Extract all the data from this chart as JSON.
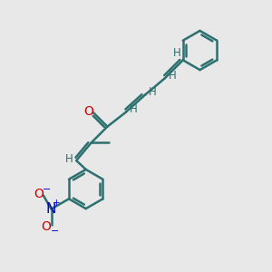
{
  "bg_color": "#e8e8e8",
  "bond_color": "#2d7070",
  "bond_width": 1.8,
  "atom_colors": {
    "O": "#cc0000",
    "N": "#0000cc",
    "H": "#2d7070"
  },
  "figsize": [
    3.0,
    3.0
  ],
  "dpi": 100,
  "xlim": [
    0,
    10
  ],
  "ylim": [
    0,
    10
  ]
}
